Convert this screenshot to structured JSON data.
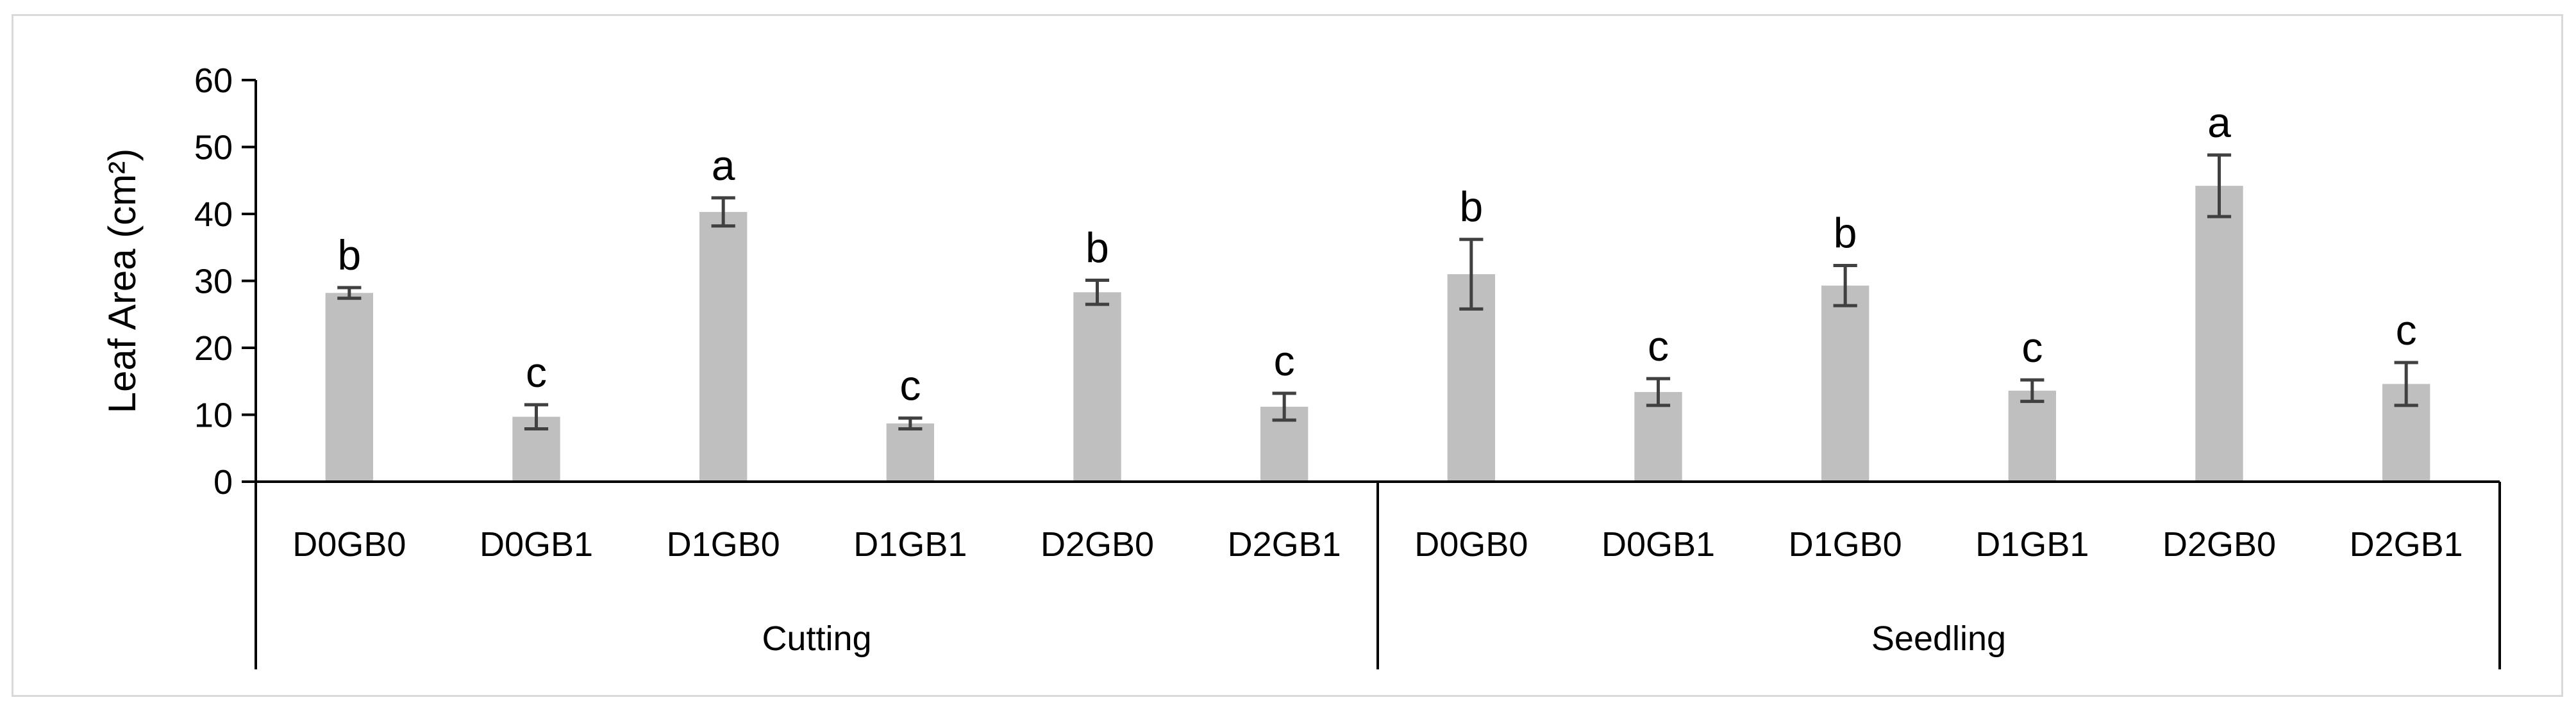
{
  "chart_data": {
    "type": "bar",
    "ylabel": "Leaf Area (cm²)",
    "ylim": [
      0,
      60
    ],
    "yticks": [
      0,
      10,
      20,
      30,
      40,
      50,
      60
    ],
    "grid": false,
    "bar_color": "#bfbfbf",
    "error_bar_color": "#404040",
    "groups": [
      {
        "name": "Cutting",
        "categories": [
          "D0GB0",
          "D0GB1",
          "D1GB0",
          "D1GB1",
          "D2GB0",
          "D2GB1"
        ],
        "values": [
          28.2,
          9.7,
          40.3,
          8.7,
          28.3,
          11.2
        ],
        "errors": [
          0.8,
          1.8,
          2.1,
          0.8,
          1.8,
          2.0
        ],
        "letters": [
          "b",
          "c",
          "a",
          "c",
          "b",
          "c"
        ]
      },
      {
        "name": "Seedling",
        "categories": [
          "D0GB0",
          "D0GB1",
          "D1GB0",
          "D1GB1",
          "D2GB0",
          "D2GB1"
        ],
        "values": [
          31.0,
          13.4,
          29.3,
          13.6,
          44.2,
          14.6
        ],
        "errors": [
          5.2,
          2.0,
          3.0,
          1.6,
          4.6,
          3.2
        ],
        "letters": [
          "b",
          "c",
          "b",
          "c",
          "a",
          "c"
        ]
      }
    ]
  }
}
